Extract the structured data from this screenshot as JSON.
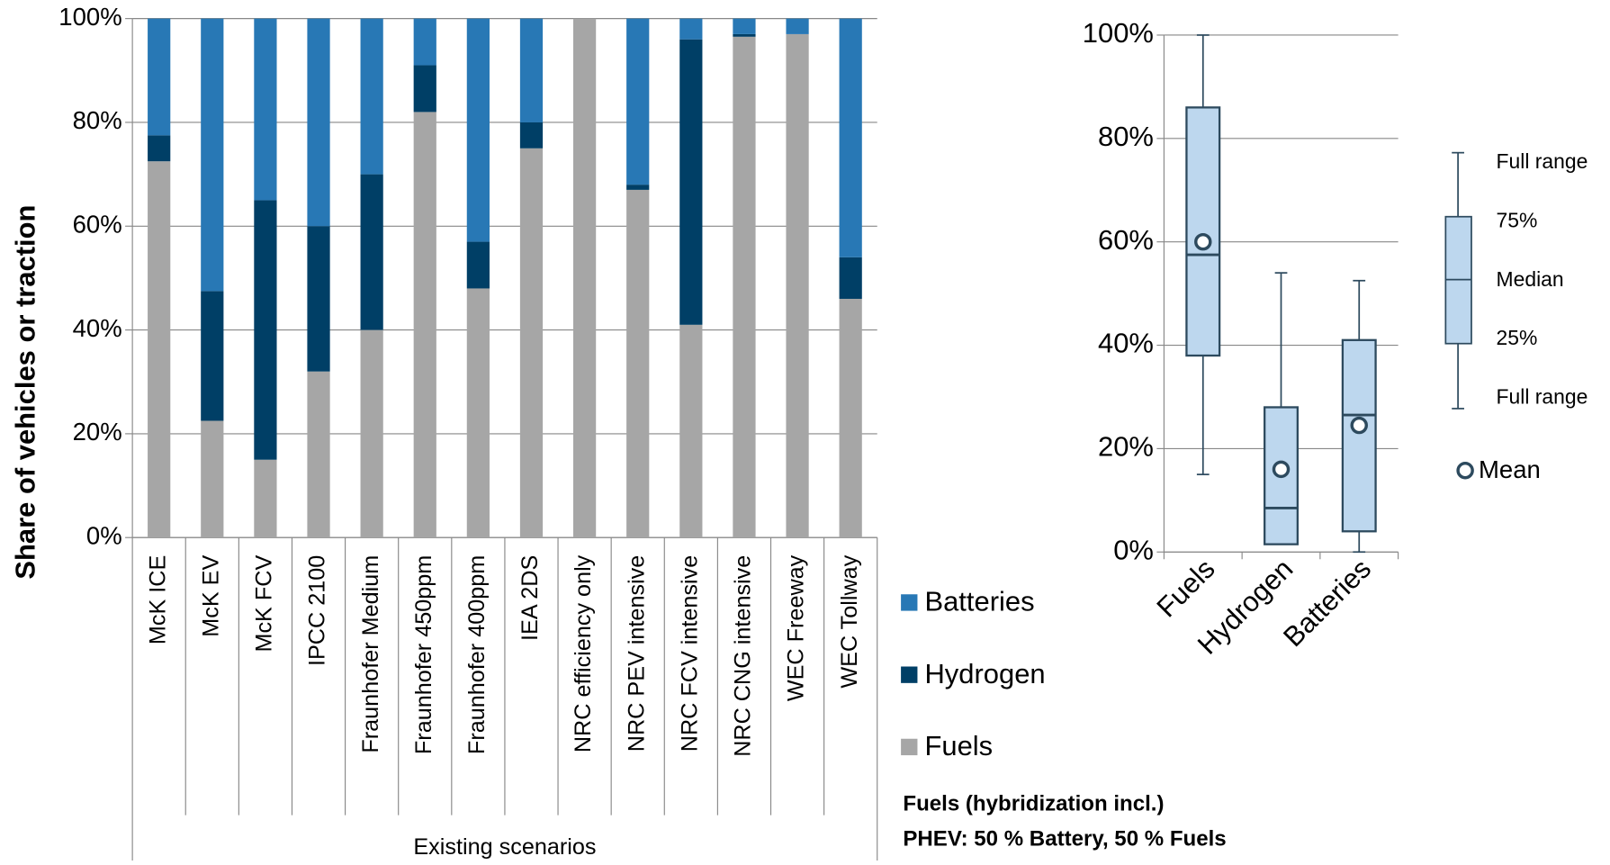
{
  "chart_data": [
    {
      "type": "stacked_bar",
      "y_label": "Share of vehicles or traction",
      "group_label": "Existing scenarios",
      "categories": [
        "McK ICE",
        "McK EV",
        "McK FCV",
        "IPCC 2100",
        "Fraunhofer Medium",
        "Fraunhofer 450ppm",
        "Fraunhofer 400ppm",
        "IEA 2DS",
        "NRC efficiency only",
        "NRC PEV intensive",
        "NRC FCV intensive",
        "NRC CNG intensive",
        "WEC Freeway",
        "WEC Tollway"
      ],
      "series": [
        {
          "name": "Fuels",
          "color": "#a6a6a6",
          "values": [
            72.5,
            22.5,
            15,
            32,
            40,
            82,
            48,
            75,
            100,
            67,
            41,
            96.5,
            97,
            46
          ]
        },
        {
          "name": "Hydrogen",
          "color": "#003f66",
          "values": [
            5,
            25,
            50,
            28,
            30,
            9,
            9,
            5,
            0,
            1,
            55,
            0.5,
            0,
            8
          ]
        },
        {
          "name": "Batteries",
          "color": "#2878b5",
          "values": [
            22.5,
            52.5,
            35,
            40,
            30,
            9,
            43,
            20,
            0,
            32,
            4,
            3,
            3,
            46
          ]
        }
      ],
      "ylim": [
        0,
        100
      ],
      "yticks": [
        {
          "value": 0,
          "label": "0%"
        },
        {
          "value": 20,
          "label": "20%"
        },
        {
          "value": 40,
          "label": "40%"
        },
        {
          "value": 60,
          "label": "60%"
        },
        {
          "value": 80,
          "label": "80%"
        },
        {
          "value": 100,
          "label": "100%"
        }
      ],
      "grid": true,
      "legend": "right",
      "notes": [
        "Fuels (hybridization incl.)",
        "PHEV: 50 % Battery, 50 % Fuels"
      ]
    },
    {
      "type": "box",
      "categories": [
        "Fuels",
        "Hydrogen",
        "Batteries"
      ],
      "min": [
        15,
        1.5,
        0
      ],
      "q1": [
        38,
        1.5,
        4
      ],
      "median": [
        57.5,
        8.5,
        26.5
      ],
      "q3": [
        86,
        28,
        41
      ],
      "max": [
        100,
        54,
        52.5
      ],
      "mean": [
        60,
        16,
        24.5
      ],
      "color": "#bdd7ee",
      "ylim": [
        0,
        100
      ],
      "yticks": [
        {
          "value": 0,
          "label": "0%"
        },
        {
          "value": 20,
          "label": "20%"
        },
        {
          "value": 40,
          "label": "40%"
        },
        {
          "value": 60,
          "label": "60%"
        },
        {
          "value": 80,
          "label": "80%"
        },
        {
          "value": 100,
          "label": "100%"
        }
      ],
      "grid": true,
      "legend_labels": [
        "Full range",
        "75%",
        "Median",
        "25%",
        "Full range"
      ],
      "mean_label": "Mean"
    }
  ]
}
